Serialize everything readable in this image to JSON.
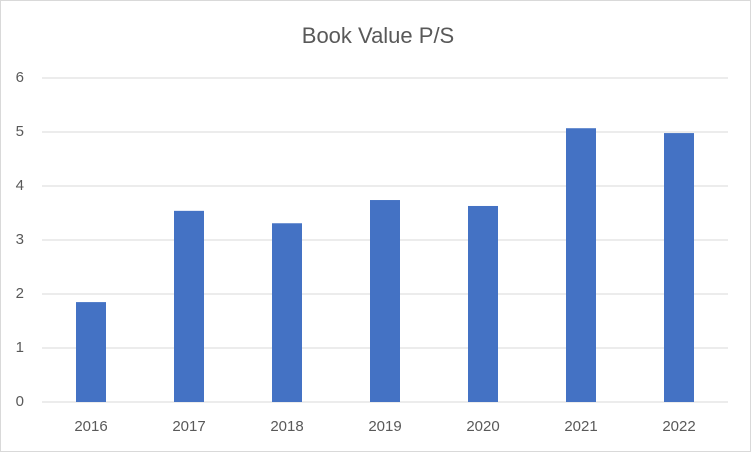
{
  "chart_data": {
    "type": "bar",
    "title": "Book Value P/S",
    "categories": [
      "2016",
      "2017",
      "2018",
      "2019",
      "2020",
      "2021",
      "2022"
    ],
    "values": [
      1.85,
      3.54,
      3.31,
      3.74,
      3.63,
      5.07,
      4.98
    ],
    "color": "#4472c4",
    "ylim": [
      0,
      6
    ],
    "yticks": [
      0,
      1,
      2,
      3,
      4,
      5,
      6
    ],
    "grid": true
  }
}
